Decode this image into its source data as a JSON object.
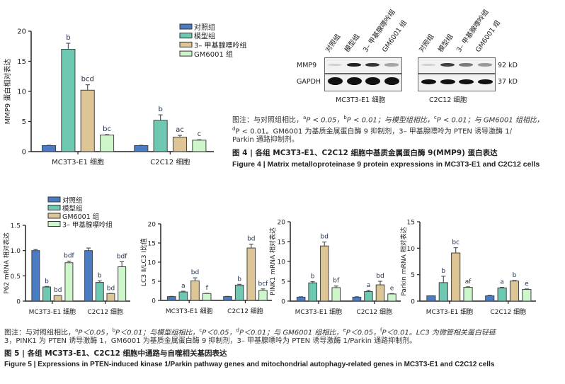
{
  "colors": {
    "control": "#4a7cc4",
    "model": "#6ec8b2",
    "tan": "#dec596",
    "light_green": "#cdf7cb",
    "axis": "#222222",
    "letter": "#1f2d4d"
  },
  "figure4": {
    "chart_data": {
      "type": "bar",
      "ylabel": "MMP9 蛋白相对表达",
      "ylim": [
        0,
        20
      ],
      "yticks": [
        0,
        5,
        10,
        15,
        20
      ],
      "categories": [
        "MC3T3-E1 细胞",
        "C2C12 细胞"
      ],
      "legend": "top-right",
      "series": [
        {
          "name": "对照组",
          "color_key": "control",
          "values": [
            1.0,
            1.0
          ],
          "errors": [
            0.05,
            0.05
          ],
          "labels": [
            "",
            ""
          ]
        },
        {
          "name": "模型组",
          "color_key": "model",
          "values": [
            17.0,
            5.2
          ],
          "errors": [
            1.0,
            0.9
          ],
          "labels": [
            "b",
            "b"
          ]
        },
        {
          "name": "3– 甲基腺嘌呤组",
          "color_key": "tan",
          "values": [
            10.2,
            2.4
          ],
          "errors": [
            0.9,
            0.3
          ],
          "labels": [
            "bcd",
            "ac"
          ]
        },
        {
          "name": "GM6001 组",
          "color_key": "light_green",
          "values": [
            2.75,
            1.9
          ],
          "errors": [
            0.08,
            0.08
          ],
          "labels": [
            "bc",
            "c"
          ]
        }
      ]
    },
    "blot": {
      "lanes": [
        "对照组",
        "模型组",
        "3– 甲基腺嘌呤组",
        "GM6001 组"
      ],
      "rows": [
        "MMP9",
        "GAPDH"
      ],
      "sizes": [
        "92 kD",
        "37 kD"
      ],
      "panels": [
        "MC3T3-E1 细胞",
        "C2C12 细胞"
      ],
      "mmp9_intensity": [
        [
          0.15,
          0.95,
          0.85,
          0.35
        ],
        [
          0.15,
          0.8,
          0.55,
          0.4
        ]
      ]
    },
    "note_line1_a": "图注：与对照组相比，",
    "sig_a": "a",
    "p005": "P < 0.05，",
    "sig_b": "b",
    "p001a": "P < 0.01；与模型组相比，",
    "sig_c": "c",
    "p001b": "P < 0.01；与 GM6001 组相比，",
    "sig_d": "d",
    "note_line2": "P < 0.01。GM6001 为基质金属蛋白酶 9 抑制剂，3– 甲基腺嘌呤为 PTEN 诱导激酶 1/",
    "note_line3": "Parkin 通路抑制剂。",
    "title_cn": "图 4  |  各组 MC3T3-E1、C2C12 细胞中基质金属蛋白酶 9(MMP9) 蛋白表达",
    "title_en": "Figure 4  |  Matrix metalloproteinase 9 protein expressions in MC3T3-E1 and C2C12 cells"
  },
  "figure5": {
    "legend": [
      "对照组",
      "模型组",
      "GM6001 组",
      "3– 甲基腺嘌呤组"
    ],
    "chart_data": [
      {
        "type": "bar",
        "ylabel": "P62 mRNA 相对表达",
        "ylim": [
          0,
          1.5
        ],
        "yticks": [
          0,
          0.5,
          1.0,
          1.5
        ],
        "ytick_labels": [
          "0",
          "0.5",
          "1.0",
          "1.5"
        ],
        "categories": [
          "MC3T3-E1 细胞",
          "C2C12 细胞"
        ],
        "series": [
          {
            "name": "对照组",
            "values": [
              1.0,
              1.0
            ],
            "errors": [
              0.02,
              0.05
            ],
            "labels": [
              "",
              ""
            ]
          },
          {
            "name": "模型组",
            "values": [
              0.28,
              0.37
            ],
            "errors": [
              0.01,
              0.03
            ],
            "labels": [
              "b",
              "b"
            ]
          },
          {
            "name": "GM6001 组",
            "values": [
              0.11,
              0.15
            ],
            "errors": [
              0.0,
              0.0
            ],
            "labels": [
              "bd",
              "bd"
            ]
          },
          {
            "name": "3– 甲基腺嘌呤组",
            "values": [
              0.76,
              0.68
            ],
            "errors": [
              0.03,
              0.1
            ],
            "labels": [
              "bdf",
              "bdf"
            ]
          }
        ]
      },
      {
        "type": "bar",
        "ylabel": "LC3 Ⅱ/LC3 Ⅰ比值",
        "ylim": [
          0,
          20
        ],
        "yticks": [
          0,
          5,
          10,
          15,
          20
        ],
        "ytick_labels": [
          "0",
          "5",
          "10",
          "15",
          "20"
        ],
        "categories": [
          "MC3T3-E1 细胞",
          "C2C12 细胞"
        ],
        "series": [
          {
            "name": "对照组",
            "values": [
              1.0,
              1.0
            ],
            "errors": [
              0.05,
              0.05
            ],
            "labels": [
              "",
              ""
            ]
          },
          {
            "name": "模型组",
            "values": [
              2.2,
              4.0
            ],
            "errors": [
              0.2,
              0.2
            ],
            "labels": [
              "a",
              "b"
            ]
          },
          {
            "name": "GM6001 组",
            "values": [
              5.1,
              13.7
            ],
            "errors": [
              0.8,
              1.0
            ],
            "labels": [
              "bd",
              "bd"
            ]
          },
          {
            "name": "3– 甲基腺嘌呤组",
            "values": [
              1.8,
              2.6
            ],
            "errors": [
              0.05,
              0.4
            ],
            "labels": [
              "f",
              "bcf"
            ]
          }
        ]
      },
      {
        "type": "bar",
        "ylabel": "PINK1 mRNA 相对表达",
        "ylim": [
          0,
          20
        ],
        "yticks": [
          0,
          5,
          10,
          15,
          20
        ],
        "ytick_labels": [
          "0",
          "5",
          "10",
          "15",
          "20"
        ],
        "categories": [
          "MC3T3-E1 细胞",
          "C2C12 细胞"
        ],
        "series": [
          {
            "name": "对照组",
            "values": [
              1.0,
              1.0
            ],
            "errors": [
              0.1,
              0.1
            ],
            "labels": [
              "",
              ""
            ]
          },
          {
            "name": "模型组",
            "values": [
              4.6,
              2.4
            ],
            "errors": [
              0.3,
              0.3
            ],
            "labels": [
              "b",
              "a"
            ]
          },
          {
            "name": "GM6001 组",
            "values": [
              13.9,
              4.1
            ],
            "errors": [
              1.0,
              0.9
            ],
            "labels": [
              "bd",
              "bd"
            ]
          },
          {
            "name": "3– 甲基腺嘌呤组",
            "values": [
              3.4,
              1.8
            ],
            "errors": [
              0.4,
              0.1
            ],
            "labels": [
              "bf",
              "e"
            ]
          }
        ]
      },
      {
        "type": "bar",
        "ylabel": "Parkin mRNA 相对表达",
        "ylim": [
          0,
          15
        ],
        "yticks": [
          0,
          5,
          10,
          15
        ],
        "ytick_labels": [
          "0",
          "5",
          "10",
          "15"
        ],
        "categories": [
          "MC3T3-E1 细胞",
          "C2C12 细胞"
        ],
        "series": [
          {
            "name": "对照组",
            "values": [
              1.0,
              1.0
            ],
            "errors": [
              0.0,
              0.1
            ],
            "labels": [
              "",
              ""
            ]
          },
          {
            "name": "模型组",
            "values": [
              3.5,
              2.5
            ],
            "errors": [
              1.2,
              0.1
            ],
            "labels": [
              "b",
              "a"
            ]
          },
          {
            "name": "GM6001 组",
            "values": [
              9.1,
              3.8
            ],
            "errors": [
              1.0,
              0.1
            ],
            "labels": [
              "bc",
              "b"
            ]
          },
          {
            "name": "3– 甲基腺嘌呤组",
            "values": [
              2.6,
              2.2
            ],
            "errors": [
              0.1,
              0.1
            ],
            "labels": [
              "af",
              "e"
            ]
          }
        ]
      }
    ],
    "note_a": "图注：与对照组相比，",
    "sig_a": "a",
    "t1": "P＜0.05，",
    "sig_b": "b",
    "t2": "P＜0.01；与模型组相比，",
    "sig_c": "c",
    "t3": "P＜0.05，",
    "sig_d": "d",
    "t4": "P＜0.01；与 GM6001 组相比，",
    "sig_e": "e",
    "t5": "P＜0.05，",
    "sig_f": "f",
    "t6": "P＜0.01。LC3 为微管相关蛋白轻链",
    "note_line2": "3，PINK1 为 PTEN 诱导激酶 1，GM6001 为基质金属蛋白酶 9 抑制剂，3– 甲基腺嘌呤为 PTEN 诱导激酶 1/Parkin 通路抑制剂。",
    "title_cn": "图 5  |  各组 MC3T3-E1、C2C12 细胞中通路与自噬相关基因表达",
    "title_en": "Figure 5  |  Expressions in PTEN-induced kinase 1/Parkin pathway genes and mitochondrial autophagy-related genes in MC3T3-E1 and C2C12 cells"
  }
}
